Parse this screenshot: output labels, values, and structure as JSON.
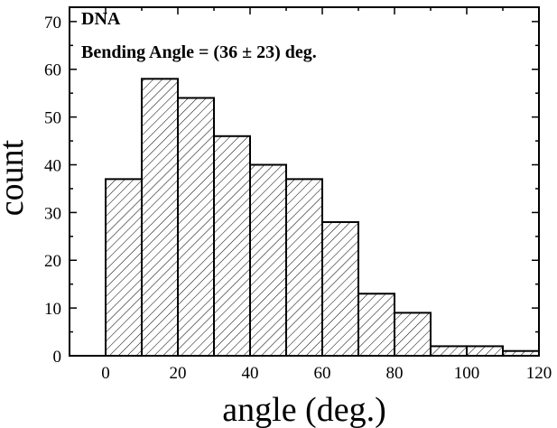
{
  "chart_data": {
    "type": "bar",
    "title": "",
    "xlabel": "angle (deg.)",
    "ylabel": "count",
    "annotations": [
      "DNA",
      "Bending Angle = (36 ± 23) deg."
    ],
    "bin_edges": [
      0,
      10,
      20,
      30,
      40,
      50,
      60,
      70,
      80,
      90,
      100,
      110,
      120
    ],
    "values": [
      37,
      58,
      54,
      46,
      40,
      37,
      28,
      13,
      9,
      2,
      2,
      1
    ],
    "xlim": [
      -10,
      120
    ],
    "ylim": [
      0,
      73
    ],
    "xticks": [
      0,
      20,
      40,
      60,
      80,
      100,
      120
    ],
    "yticks": [
      0,
      10,
      20,
      30,
      40,
      50,
      60,
      70
    ],
    "grid": false,
    "bar_fill": "hatched",
    "colors": {
      "bar_edge": "#000000",
      "hatch": "#000000",
      "background": "#ffffff"
    }
  }
}
